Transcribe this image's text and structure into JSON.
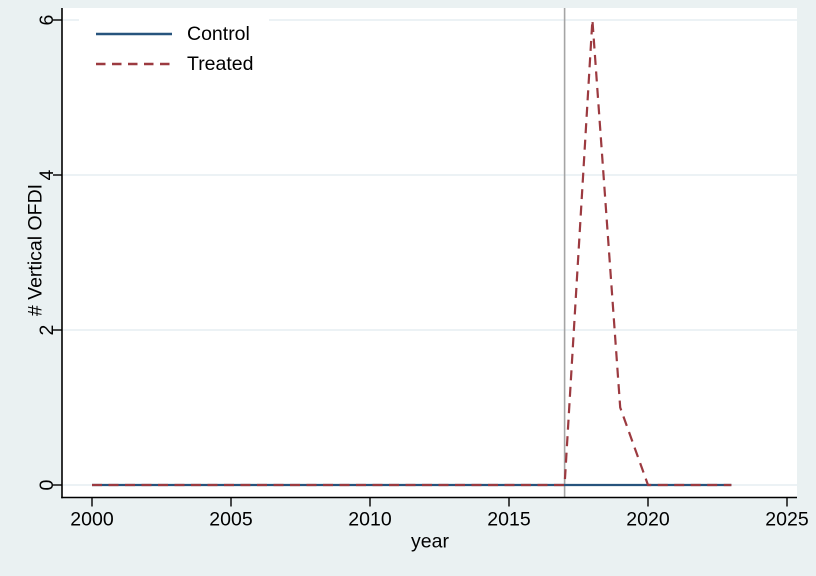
{
  "figure": {
    "background_color": "#eaf1f2",
    "plot_background_color": "#ffffff",
    "grid_color": "#e6edf2",
    "axis_color": "#000000",
    "reference_line_color": "#a5a5a5"
  },
  "chart_data": {
    "type": "line",
    "title": "",
    "xlabel": "year",
    "ylabel": "# Vertical OFDI",
    "xlim": [
      2000,
      2025
    ],
    "ylim": [
      0,
      6
    ],
    "xticks": [
      2000,
      2005,
      2010,
      2015,
      2020,
      2025
    ],
    "yticks": [
      0,
      2,
      4,
      6
    ],
    "grid": "horizontal",
    "legend_position": "top-left",
    "reference_line_x": 2017,
    "x": [
      2000,
      2001,
      2002,
      2003,
      2004,
      2005,
      2006,
      2007,
      2008,
      2009,
      2010,
      2011,
      2012,
      2013,
      2014,
      2015,
      2016,
      2017,
      2018,
      2019,
      2020,
      2021,
      2022,
      2023
    ],
    "series": [
      {
        "name": "Control",
        "color": "#27547d",
        "line_style": "solid",
        "values": [
          0,
          0,
          0,
          0,
          0,
          0,
          0,
          0,
          0,
          0,
          0,
          0,
          0,
          0,
          0,
          0,
          0,
          0,
          0,
          0,
          0,
          0,
          0,
          0
        ]
      },
      {
        "name": "Treated",
        "color": "#9c3a40",
        "line_style": "dashed",
        "values": [
          0,
          0,
          0,
          0,
          0,
          0,
          0,
          0,
          0,
          0,
          0,
          0,
          0,
          0,
          0,
          0,
          0,
          0,
          6,
          1,
          0,
          0,
          0,
          0
        ]
      }
    ]
  }
}
